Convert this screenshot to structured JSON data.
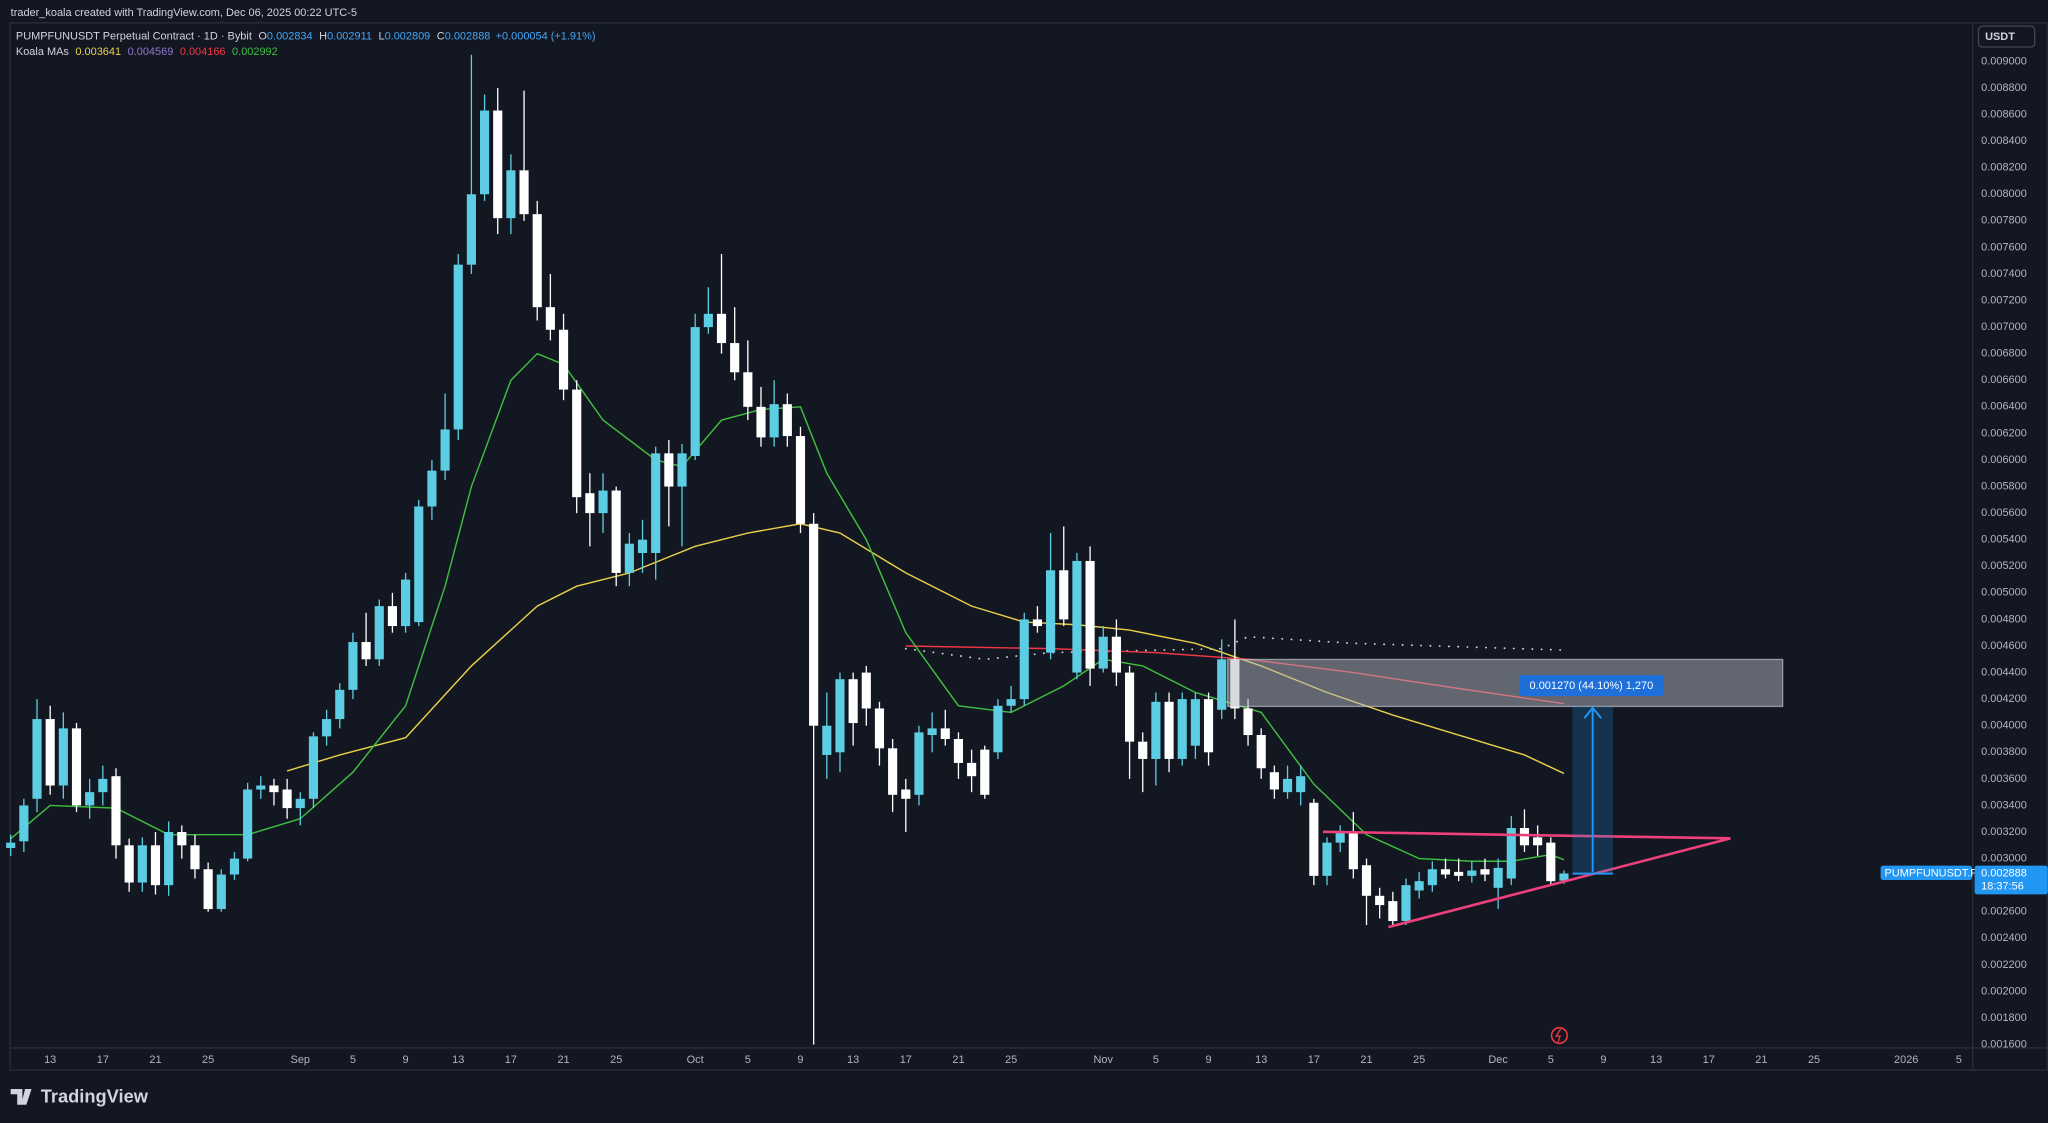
{
  "header": {
    "attribution": "trader_koala created with TradingView.com, Dec 06, 2025 00:22 UTC-5"
  },
  "chart_data": {
    "type": "candlestick",
    "title": "PUMPFUNUSDT Perpetual Contract · 1D · Bybit",
    "ohlc_labels": [
      "O",
      "H",
      "L",
      "C"
    ],
    "change": "+0.000054 (+1.91%)",
    "currency": "USDT",
    "symbol_label": "PUMPFUNUSDT.P",
    "countdown": "18:37:56",
    "annotation": "0.001270 (44.10%) 1,270",
    "up_color": "#5dcde3",
    "down_color": "#ffffff",
    "x": [
      "2025-08-10",
      "2025-08-11",
      "2025-08-12",
      "2025-08-13",
      "2025-08-14",
      "2025-08-15",
      "2025-08-16",
      "2025-08-17",
      "2025-08-18",
      "2025-08-19",
      "2025-08-20",
      "2025-08-21",
      "2025-08-22",
      "2025-08-23",
      "2025-08-24",
      "2025-08-25",
      "2025-08-26",
      "2025-08-27",
      "2025-08-28",
      "2025-08-29",
      "2025-08-30",
      "2025-08-31",
      "2025-09-01",
      "2025-09-02",
      "2025-09-03",
      "2025-09-04",
      "2025-09-05",
      "2025-09-06",
      "2025-09-07",
      "2025-09-08",
      "2025-09-09",
      "2025-09-10",
      "2025-09-11",
      "2025-09-12",
      "2025-09-13",
      "2025-09-14",
      "2025-09-15",
      "2025-09-16",
      "2025-09-17",
      "2025-09-18",
      "2025-09-19",
      "2025-09-20",
      "2025-09-21",
      "2025-09-22",
      "2025-09-23",
      "2025-09-24",
      "2025-09-25",
      "2025-09-26",
      "2025-09-27",
      "2025-09-28",
      "2025-09-29",
      "2025-09-30",
      "2025-10-01",
      "2025-10-02",
      "2025-10-03",
      "2025-10-04",
      "2025-10-05",
      "2025-10-06",
      "2025-10-07",
      "2025-10-08",
      "2025-10-09",
      "2025-10-10",
      "2025-10-11",
      "2025-10-12",
      "2025-10-13",
      "2025-10-14",
      "2025-10-15",
      "2025-10-16",
      "2025-10-17",
      "2025-10-18",
      "2025-10-19",
      "2025-10-20",
      "2025-10-21",
      "2025-10-22",
      "2025-10-23",
      "2025-10-24",
      "2025-10-25",
      "2025-10-26",
      "2025-10-27",
      "2025-10-28",
      "2025-10-29",
      "2025-10-30",
      "2025-10-31",
      "2025-11-01",
      "2025-11-02",
      "2025-11-03",
      "2025-11-04",
      "2025-11-05",
      "2025-11-06",
      "2025-11-07",
      "2025-11-08",
      "2025-11-09",
      "2025-11-10",
      "2025-11-11",
      "2025-11-12",
      "2025-11-13",
      "2025-11-14",
      "2025-11-15",
      "2025-11-16",
      "2025-11-17",
      "2025-11-18",
      "2025-11-19",
      "2025-11-20",
      "2025-11-21",
      "2025-11-22",
      "2025-11-23",
      "2025-11-24",
      "2025-11-25",
      "2025-11-26",
      "2025-11-27",
      "2025-11-28",
      "2025-11-29",
      "2025-11-30",
      "2025-12-01",
      "2025-12-02",
      "2025-12-03",
      "2025-12-04",
      "2025-12-05",
      "2025-12-06"
    ],
    "open": [
      0.00308,
      0.00313,
      0.00345,
      0.00405,
      0.00355,
      0.00398,
      0.0034,
      0.0035,
      0.00362,
      0.0031,
      0.00282,
      0.0031,
      0.0028,
      0.0032,
      0.0031,
      0.00292,
      0.00262,
      0.00288,
      0.003,
      0.00352,
      0.00355,
      0.00352,
      0.00338,
      0.00345,
      0.00392,
      0.00405,
      0.00427,
      0.00463,
      0.0045,
      0.0049,
      0.00475,
      0.00478,
      0.00565,
      0.00592,
      0.00623,
      0.00747,
      0.008,
      0.00863,
      0.00782,
      0.00818,
      0.00785,
      0.00715,
      0.00698,
      0.00653,
      0.00575,
      0.0056,
      0.00577,
      0.00515,
      0.0053,
      0.0053,
      0.00605,
      0.0058,
      0.00603,
      0.007,
      0.0071,
      0.00688,
      0.00666,
      0.0064,
      0.00617,
      0.00642,
      0.00618,
      0.00552,
      0.00378,
      0.0038,
      0.00435,
      0.0044,
      0.00413,
      0.00383,
      0.00352,
      0.00348,
      0.00393,
      0.00398,
      0.0039,
      0.00372,
      0.00382,
      0.0038,
      0.00415,
      0.0042,
      0.0048,
      0.00455,
      0.00517,
      0.0044,
      0.00524,
      0.00443,
      0.00467,
      0.0044,
      0.00388,
      0.00375,
      0.00418,
      0.00375,
      0.00385,
      0.0042,
      0.00412,
      0.0045,
      0.00413,
      0.00393,
      0.00365,
      0.0035,
      0.0035,
      0.00342,
      0.00287,
      0.00312,
      0.0032,
      0.00295,
      0.00272,
      0.00268,
      0.00253,
      0.00276,
      0.0028,
      0.00292,
      0.0029,
      0.00287,
      0.00292,
      0.00278,
      0.00285,
      0.00323,
      0.00316,
      0.00312,
      0.002834
    ],
    "high": [
      0.00318,
      0.00345,
      0.0042,
      0.00415,
      0.0041,
      0.00402,
      0.0036,
      0.0037,
      0.00368,
      0.00315,
      0.00316,
      0.0032,
      0.00328,
      0.00325,
      0.00318,
      0.00297,
      0.00292,
      0.00305,
      0.00357,
      0.00362,
      0.0036,
      0.0036,
      0.0035,
      0.00395,
      0.00412,
      0.00432,
      0.0047,
      0.00485,
      0.00495,
      0.005,
      0.00515,
      0.0057,
      0.006,
      0.0065,
      0.00755,
      0.00905,
      0.00875,
      0.0088,
      0.0083,
      0.00878,
      0.00795,
      0.0074,
      0.0071,
      0.0066,
      0.0059,
      0.0059,
      0.0058,
      0.00545,
      0.00555,
      0.0061,
      0.00615,
      0.00612,
      0.0071,
      0.0073,
      0.00755,
      0.00715,
      0.0069,
      0.00655,
      0.0066,
      0.0065,
      0.00625,
      0.0056,
      0.00425,
      0.0044,
      0.0044,
      0.00445,
      0.00418,
      0.0039,
      0.0036,
      0.004,
      0.0041,
      0.00412,
      0.00395,
      0.00382,
      0.00385,
      0.0042,
      0.0043,
      0.00485,
      0.0049,
      0.00545,
      0.0055,
      0.0053,
      0.00535,
      0.00475,
      0.0048,
      0.00445,
      0.00395,
      0.00425,
      0.00425,
      0.00425,
      0.00425,
      0.00425,
      0.00465,
      0.0048,
      0.0042,
      0.00398,
      0.0037,
      0.0037,
      0.0037,
      0.00345,
      0.00316,
      0.00325,
      0.00335,
      0.003,
      0.00278,
      0.00275,
      0.00285,
      0.0029,
      0.00298,
      0.003,
      0.003,
      0.00298,
      0.003,
      0.003,
      0.00332,
      0.00337,
      0.00325,
      0.00316,
      0.002911
    ],
    "low": [
      0.00302,
      0.00305,
      0.00335,
      0.00348,
      0.00345,
      0.00335,
      0.0033,
      0.0034,
      0.003,
      0.00275,
      0.00275,
      0.00273,
      0.00272,
      0.003,
      0.00285,
      0.0026,
      0.0026,
      0.00284,
      0.00298,
      0.00345,
      0.0034,
      0.0033,
      0.00325,
      0.00338,
      0.00385,
      0.00398,
      0.0042,
      0.00445,
      0.00445,
      0.0047,
      0.0047,
      0.00475,
      0.00555,
      0.00585,
      0.00615,
      0.0074,
      0.00795,
      0.0077,
      0.0077,
      0.0078,
      0.00705,
      0.0069,
      0.00645,
      0.0056,
      0.00535,
      0.00545,
      0.00505,
      0.00505,
      0.00515,
      0.0051,
      0.0055,
      0.00535,
      0.006,
      0.00695,
      0.0068,
      0.0066,
      0.0063,
      0.0061,
      0.0061,
      0.0061,
      0.00545,
      0.0016,
      0.0036,
      0.00365,
      0.00385,
      0.004,
      0.0037,
      0.00335,
      0.0032,
      0.0034,
      0.0038,
      0.00385,
      0.0036,
      0.0035,
      0.00345,
      0.00375,
      0.0041,
      0.00415,
      0.0047,
      0.0045,
      0.00475,
      0.00435,
      0.0043,
      0.0044,
      0.0043,
      0.0036,
      0.0035,
      0.00355,
      0.00365,
      0.0037,
      0.00375,
      0.0037,
      0.00405,
      0.00405,
      0.00385,
      0.0036,
      0.00345,
      0.00345,
      0.0034,
      0.0028,
      0.0028,
      0.00305,
      0.00285,
      0.0025,
      0.00255,
      0.0025,
      0.0025,
      0.0027,
      0.00275,
      0.00285,
      0.00283,
      0.00282,
      0.00283,
      0.00262,
      0.0028,
      0.00305,
      0.00302,
      0.0028,
      0.002809
    ],
    "close": [
      0.00312,
      0.0034,
      0.00405,
      0.00355,
      0.00398,
      0.0034,
      0.0035,
      0.0036,
      0.0031,
      0.00282,
      0.0031,
      0.0028,
      0.0032,
      0.0031,
      0.00292,
      0.00262,
      0.00288,
      0.003,
      0.00352,
      0.00355,
      0.0035,
      0.00338,
      0.00345,
      0.00392,
      0.00405,
      0.00427,
      0.00463,
      0.0045,
      0.0049,
      0.00475,
      0.0051,
      0.00565,
      0.00592,
      0.00623,
      0.00747,
      0.008,
      0.00863,
      0.00782,
      0.00818,
      0.00785,
      0.00715,
      0.00698,
      0.00653,
      0.00572,
      0.0056,
      0.00577,
      0.00515,
      0.00537,
      0.0054,
      0.00605,
      0.0058,
      0.00605,
      0.007,
      0.0071,
      0.00688,
      0.00666,
      0.0064,
      0.00617,
      0.00642,
      0.00618,
      0.00552,
      0.004,
      0.004,
      0.00435,
      0.00402,
      0.00413,
      0.00383,
      0.00348,
      0.00345,
      0.00395,
      0.00398,
      0.0039,
      0.00372,
      0.00362,
      0.00348,
      0.00415,
      0.0042,
      0.0048,
      0.00475,
      0.00517,
      0.0048,
      0.00524,
      0.00443,
      0.00467,
      0.0044,
      0.00388,
      0.00375,
      0.00418,
      0.00375,
      0.0042,
      0.0042,
      0.0038,
      0.0045,
      0.00413,
      0.00393,
      0.00368,
      0.00352,
      0.0036,
      0.00362,
      0.00287,
      0.00312,
      0.0032,
      0.00292,
      0.00272,
      0.00265,
      0.00253,
      0.0028,
      0.00283,
      0.00292,
      0.00288,
      0.00287,
      0.00291,
      0.00288,
      0.00293,
      0.00323,
      0.0031,
      0.0031,
      0.00283,
      0.002888
    ],
    "indicator": {
      "title": "Koala MAs",
      "series": [
        {
          "color": "#e8d04a",
          "style": "solid",
          "x": [
            "2025-08-31",
            "2025-09-04",
            "2025-09-09",
            "2025-09-14",
            "2025-09-19",
            "2025-09-22",
            "2025-09-26",
            "2025-10-01",
            "2025-10-05",
            "2025-10-09",
            "2025-10-12",
            "2025-10-17",
            "2025-10-22",
            "2025-10-26",
            "2025-10-30",
            "2025-11-03",
            "2025-11-08",
            "2025-11-13",
            "2025-11-18",
            "2025-11-23",
            "2025-11-28",
            "2025-12-03",
            "2025-12-06"
          ],
          "values": [
            0.00366,
            0.00378,
            0.00391,
            0.00445,
            0.0049,
            0.00505,
            0.00515,
            0.00535,
            0.00545,
            0.00552,
            0.00545,
            0.00515,
            0.0049,
            0.00478,
            0.00476,
            0.00472,
            0.00462,
            0.00445,
            0.00425,
            0.00408,
            0.00393,
            0.00378,
            0.003641
          ]
        },
        {
          "color": "#9575cd",
          "line_color": "#d1d4dc",
          "style": "dotted",
          "x": [
            "2025-10-17",
            "2025-10-23",
            "2025-10-28",
            "2025-11-10",
            "2025-11-12",
            "2025-11-20",
            "2025-12-06"
          ],
          "values": [
            0.00458,
            0.0045,
            0.00455,
            0.00458,
            0.00467,
            0.00462,
            0.004569
          ]
        },
        {
          "color": "#f23645",
          "style": "solid",
          "x": [
            "2025-10-17",
            "2025-10-28",
            "2025-11-05",
            "2025-11-12",
            "2025-11-20",
            "2025-11-28",
            "2025-12-06"
          ],
          "values": [
            0.0046,
            0.00458,
            0.00455,
            0.0045,
            0.0044,
            0.00428,
            0.004166
          ]
        },
        {
          "color": "#3fbf3f",
          "style": "solid",
          "x": [
            "2025-08-10",
            "2025-08-13",
            "2025-08-18",
            "2025-08-22",
            "2025-08-28",
            "2025-09-01",
            "2025-09-05",
            "2025-09-09",
            "2025-09-12",
            "2025-09-14",
            "2025-09-17",
            "2025-09-19",
            "2025-09-21",
            "2025-09-24",
            "2025-09-28",
            "2025-09-30",
            "2025-10-03",
            "2025-10-06",
            "2025-10-09",
            "2025-10-11",
            "2025-10-14",
            "2025-10-17",
            "2025-10-21",
            "2025-10-25",
            "2025-10-29",
            "2025-11-01",
            "2025-11-04",
            "2025-11-08",
            "2025-11-13",
            "2025-11-17",
            "2025-11-21",
            "2025-11-25",
            "2025-11-29",
            "2025-12-02",
            "2025-12-05",
            "2025-12-06"
          ],
          "values": [
            0.00315,
            0.0034,
            0.00338,
            0.00318,
            0.00318,
            0.0033,
            0.00365,
            0.00415,
            0.00505,
            0.0058,
            0.0066,
            0.0068,
            0.00672,
            0.0063,
            0.006,
            0.00595,
            0.0063,
            0.00638,
            0.0064,
            0.0059,
            0.0054,
            0.0047,
            0.00415,
            0.0041,
            0.0043,
            0.0045,
            0.00445,
            0.00425,
            0.0041,
            0.00356,
            0.00318,
            0.003,
            0.00298,
            0.00298,
            0.00303,
            0.002992
          ]
        }
      ]
    },
    "xlim": [
      "2025-08-10",
      "2026-01-06"
    ],
    "xticks": [
      {
        "value": "2025-08-13",
        "label": "13"
      },
      {
        "value": "2025-08-17",
        "label": "17"
      },
      {
        "value": "2025-08-21",
        "label": "21"
      },
      {
        "value": "2025-08-25",
        "label": "25"
      },
      {
        "value": "2025-09-01",
        "label": "Sep"
      },
      {
        "value": "2025-09-05",
        "label": "5"
      },
      {
        "value": "2025-09-09",
        "label": "9"
      },
      {
        "value": "2025-09-13",
        "label": "13"
      },
      {
        "value": "2025-09-17",
        "label": "17"
      },
      {
        "value": "2025-09-21",
        "label": "21"
      },
      {
        "value": "2025-09-25",
        "label": "25"
      },
      {
        "value": "2025-10-01",
        "label": "Oct"
      },
      {
        "value": "2025-10-05",
        "label": "5"
      },
      {
        "value": "2025-10-09",
        "label": "9"
      },
      {
        "value": "2025-10-13",
        "label": "13"
      },
      {
        "value": "2025-10-17",
        "label": "17"
      },
      {
        "value": "2025-10-21",
        "label": "21"
      },
      {
        "value": "2025-10-25",
        "label": "25"
      },
      {
        "value": "2025-11-01",
        "label": "Nov"
      },
      {
        "value": "2025-11-05",
        "label": "5"
      },
      {
        "value": "2025-11-09",
        "label": "9"
      },
      {
        "value": "2025-11-13",
        "label": "13"
      },
      {
        "value": "2025-11-17",
        "label": "17"
      },
      {
        "value": "2025-11-21",
        "label": "21"
      },
      {
        "value": "2025-11-25",
        "label": "25"
      },
      {
        "value": "2025-12-01",
        "label": "Dec"
      },
      {
        "value": "2025-12-05",
        "label": "5"
      },
      {
        "value": "2025-12-09",
        "label": "9"
      },
      {
        "value": "2025-12-13",
        "label": "13"
      },
      {
        "value": "2025-12-17",
        "label": "17"
      },
      {
        "value": "2025-12-21",
        "label": "21"
      },
      {
        "value": "2025-12-25",
        "label": "25"
      },
      {
        "value": "2026-01-01",
        "label": "2026"
      },
      {
        "value": "2026-01-05",
        "label": "5"
      }
    ],
    "ylim": [
      0.00158,
      0.009285
    ],
    "yticks": [
      {
        "value": 0.0016,
        "label": "0.001600"
      },
      {
        "value": 0.0018,
        "label": "0.001800"
      },
      {
        "value": 0.002,
        "label": "0.002000"
      },
      {
        "value": 0.0022,
        "label": "0.002200"
      },
      {
        "value": 0.0024,
        "label": "0.002400"
      },
      {
        "value": 0.0026,
        "label": "0.002600"
      },
      {
        "value": 0.0028,
        "label": "0.002800"
      },
      {
        "value": 0.003,
        "label": "0.003000"
      },
      {
        "value": 0.0032,
        "label": "0.003200"
      },
      {
        "value": 0.0034,
        "label": "0.003400"
      },
      {
        "value": 0.0036,
        "label": "0.003600"
      },
      {
        "value": 0.0038,
        "label": "0.003800"
      },
      {
        "value": 0.004,
        "label": "0.004000"
      },
      {
        "value": 0.0042,
        "label": "0.004200"
      },
      {
        "value": 0.0044,
        "label": "0.004400"
      },
      {
        "value": 0.0046,
        "label": "0.004600"
      },
      {
        "value": 0.0048,
        "label": "0.004800"
      },
      {
        "value": 0.005,
        "label": "0.005000"
      },
      {
        "value": 0.0052,
        "label": "0.005200"
      },
      {
        "value": 0.0054,
        "label": "0.005400"
      },
      {
        "value": 0.0056,
        "label": "0.005600"
      },
      {
        "value": 0.0058,
        "label": "0.005800"
      },
      {
        "value": 0.006,
        "label": "0.006000"
      },
      {
        "value": 0.0062,
        "label": "0.006200"
      },
      {
        "value": 0.0064,
        "label": "0.006400"
      },
      {
        "value": 0.0066,
        "label": "0.006600"
      },
      {
        "value": 0.0068,
        "label": "0.006800"
      },
      {
        "value": 0.007,
        "label": "0.007000"
      },
      {
        "value": 0.0072,
        "label": "0.007200"
      },
      {
        "value": 0.0074,
        "label": "0.007400"
      },
      {
        "value": 0.0076,
        "label": "0.007600"
      },
      {
        "value": 0.0078,
        "label": "0.007800"
      },
      {
        "value": 0.008,
        "label": "0.008000"
      },
      {
        "value": 0.0082,
        "label": "0.008200"
      },
      {
        "value": 0.0084,
        "label": "0.008400"
      },
      {
        "value": 0.0086,
        "label": "0.008600"
      },
      {
        "value": 0.0088,
        "label": "0.008800"
      },
      {
        "value": 0.009,
        "label": "0.009000"
      }
    ],
    "grid": false
  },
  "branding": "TradingView"
}
